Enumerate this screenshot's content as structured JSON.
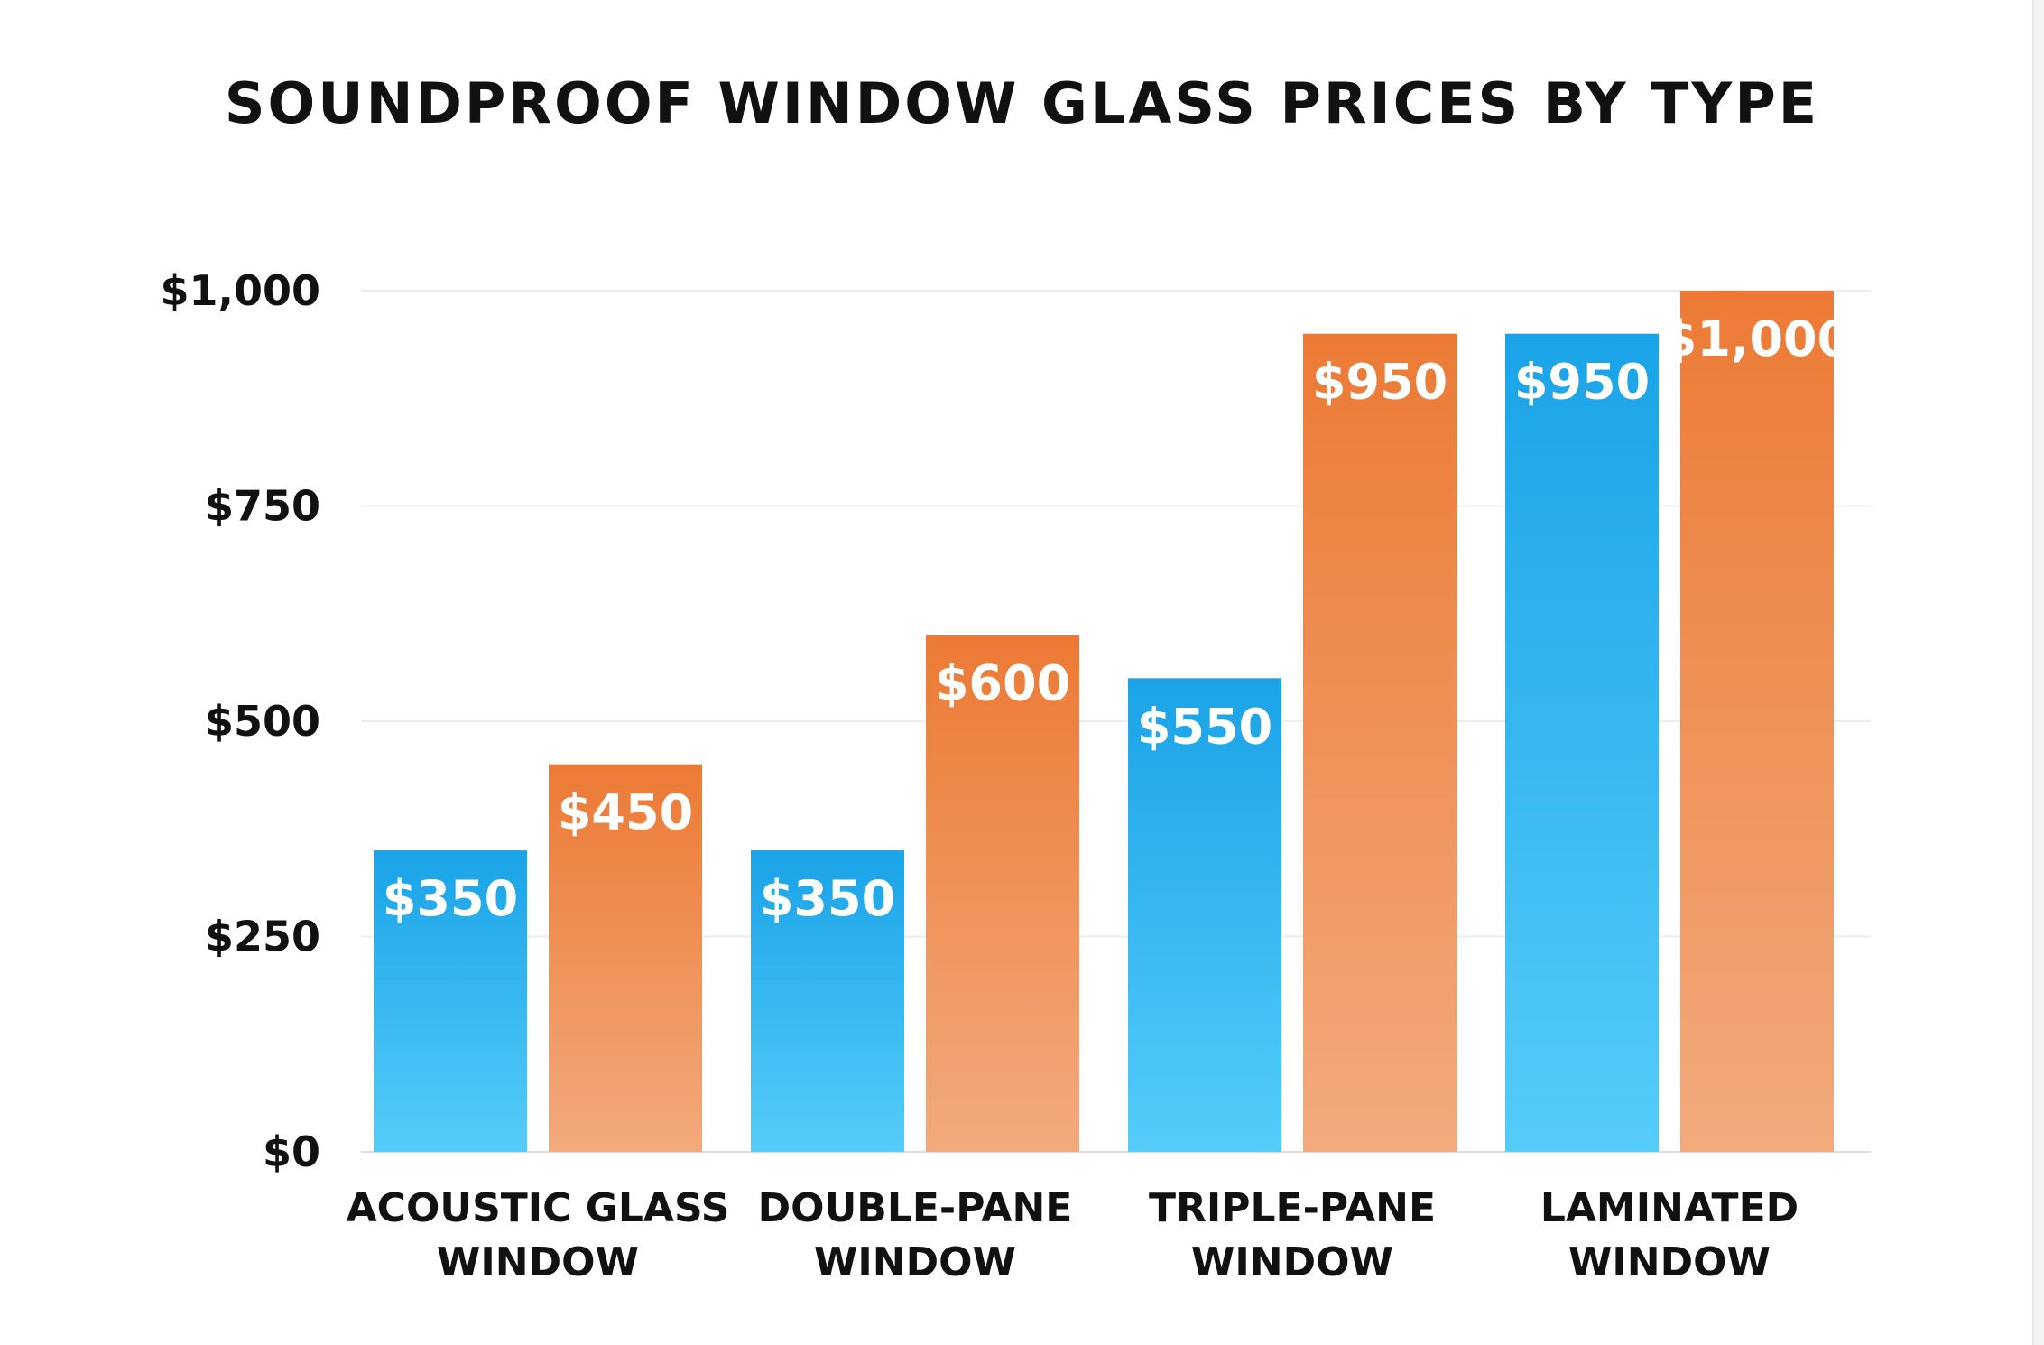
{
  "chart_data": {
    "type": "bar",
    "title": "SOUNDPROOF WINDOW GLASS PRICES BY TYPE",
    "categories": [
      [
        "ACOUSTIC GLASS",
        "WINDOW"
      ],
      [
        "DOUBLE-PANE",
        "WINDOW"
      ],
      [
        "TRIPLE-PANE",
        "WINDOW"
      ],
      [
        "LAMINATED",
        "WINDOW"
      ]
    ],
    "series": [
      {
        "values": [
          350,
          350,
          550,
          950
        ],
        "value_labels": [
          "$350",
          "$350",
          "$550",
          "$950"
        ],
        "color_top": "#1aa3e8",
        "color_bottom": "#55ccf8"
      },
      {
        "values": [
          450,
          600,
          950,
          1000
        ],
        "value_labels": [
          "$450",
          "$600",
          "$950",
          "$1,000"
        ],
        "color_top": "#ec7a35",
        "color_bottom": "#f2aa7c"
      }
    ],
    "yticks": [
      0,
      250,
      500,
      750,
      1000
    ],
    "ytick_labels": [
      "$0",
      "$250",
      "$500",
      "$750",
      "$1,000"
    ],
    "ylim": [
      0,
      1000
    ],
    "grid": true,
    "legend": "none"
  }
}
